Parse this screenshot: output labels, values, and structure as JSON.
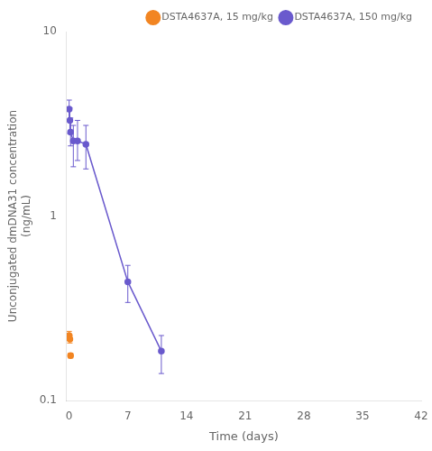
{
  "chart_data": {
    "type": "line",
    "xlabel": "Time (days)",
    "ylabel": "Unconjugated dmDNA31 concentration\n(ng/mL)",
    "log": "y",
    "xlim": [
      -0.3,
      42
    ],
    "ylim": [
      0.1,
      10
    ],
    "xticks": [
      0,
      7,
      14,
      21,
      28,
      35,
      42
    ],
    "yticks": [
      0.1,
      1,
      10
    ],
    "grid": false,
    "legend": "upper right",
    "series": [
      {
        "name": "DSTA4637A, 15 mg/kg",
        "color": "#F28522",
        "marker": "circle",
        "line_style": "none",
        "x": [
          0.0,
          0.083,
          0.17
        ],
        "values": [
          0.225,
          0.215,
          0.175
        ],
        "yerr_low": [
          0.012,
          0.01,
          0.005
        ],
        "yerr_high": [
          0.012,
          0.01,
          0.005
        ]
      },
      {
        "name": "DSTA4637A, 150 mg/kg",
        "color": "#6A5ACD",
        "marker": "circle",
        "line_style": "solid",
        "x": [
          0.0,
          0.083,
          0.17,
          0.5,
          1.0,
          2.0,
          7.0,
          11.0
        ],
        "values": [
          3.8,
          3.3,
          2.85,
          2.55,
          2.55,
          2.45,
          0.44,
          0.185
        ],
        "yerr_low": [
          0.5,
          0.5,
          0.45,
          0.7,
          0.55,
          0.65,
          0.1,
          0.045
        ],
        "yerr_high": [
          0.45,
          0.55,
          0.55,
          0.55,
          0.75,
          0.65,
          0.1,
          0.04
        ]
      }
    ]
  }
}
